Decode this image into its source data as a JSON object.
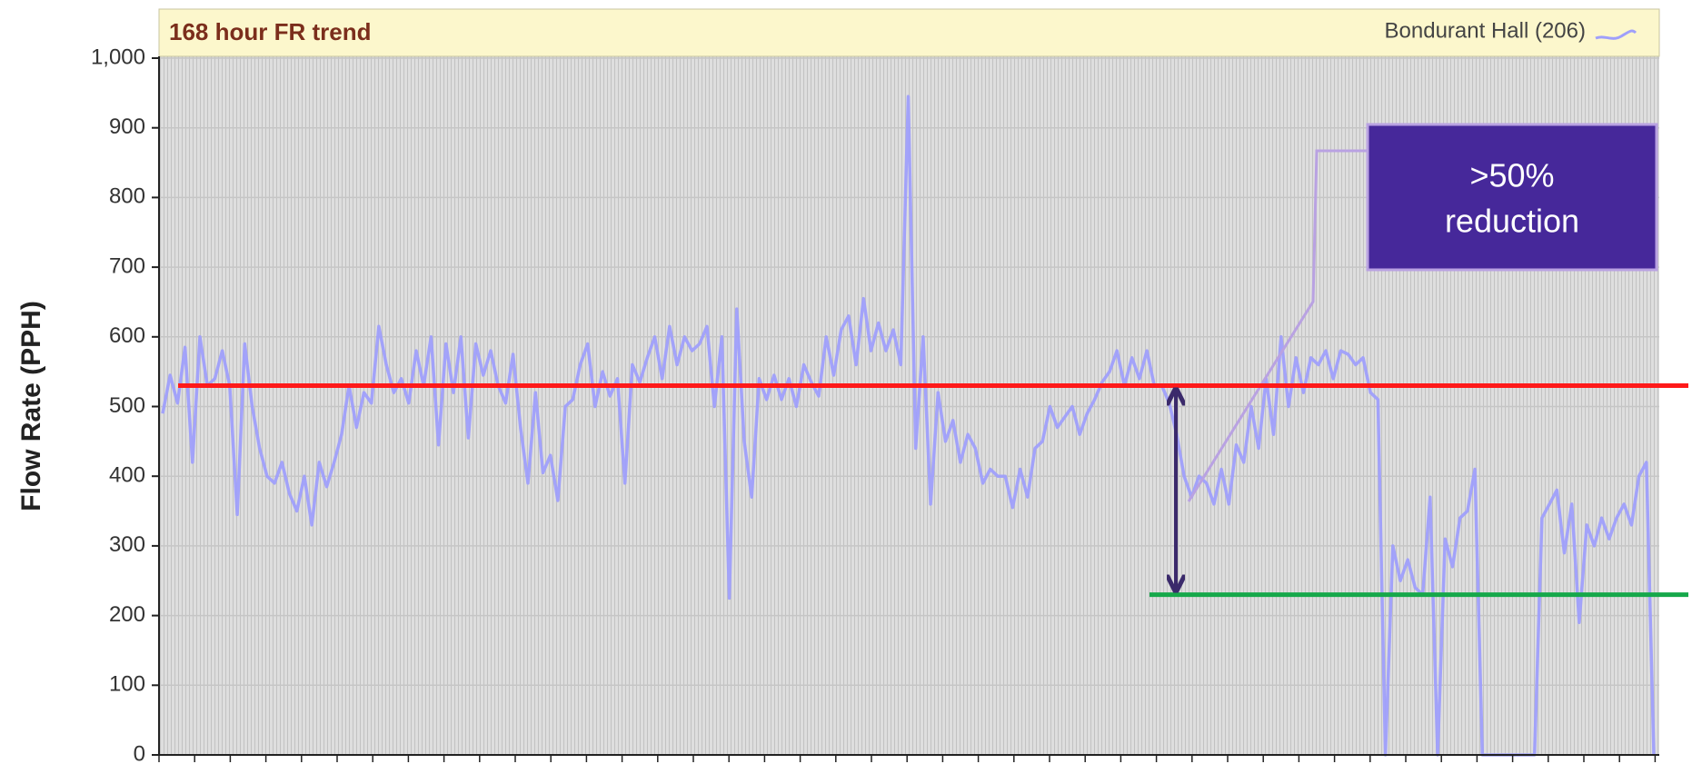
{
  "chart_data": {
    "type": "line",
    "title": "168 hour FR trend",
    "y_label": "Flow Rate (PPH)",
    "series": [
      {
        "name": "Bondurant Hall (206)",
        "color": "#9f9ffb",
        "values": [
          490,
          545,
          505,
          585,
          420,
          600,
          530,
          540,
          580,
          530,
          345,
          590,
          500,
          440,
          400,
          390,
          420,
          375,
          350,
          400,
          330,
          420,
          385,
          420,
          460,
          530,
          470,
          520,
          505,
          615,
          560,
          520,
          540,
          505,
          580,
          530,
          600,
          445,
          590,
          520,
          600,
          455,
          590,
          545,
          580,
          530,
          505,
          575,
          470,
          390,
          520,
          405,
          430,
          365,
          500,
          510,
          560,
          590,
          500,
          550,
          515,
          540,
          390,
          560,
          535,
          570,
          600,
          540,
          615,
          560,
          600,
          580,
          590,
          615,
          500,
          600,
          225,
          640,
          450,
          370,
          540,
          510,
          545,
          510,
          540,
          500,
          560,
          535,
          515,
          600,
          545,
          610,
          630,
          560,
          655,
          580,
          620,
          580,
          610,
          560,
          945,
          440,
          600,
          360,
          520,
          450,
          480,
          420,
          460,
          440,
          390,
          410,
          400,
          400,
          355,
          410,
          370,
          440,
          450,
          500,
          470,
          485,
          500,
          460,
          490,
          510,
          535,
          550,
          580,
          530,
          570,
          540,
          580,
          530,
          530,
          505,
          460,
          400,
          370,
          400,
          390,
          360,
          410,
          360,
          445,
          420,
          500,
          440,
          540,
          460,
          600,
          500,
          570,
          520,
          570,
          560,
          580,
          540,
          580,
          575,
          560,
          570,
          520,
          510,
          0,
          300,
          250,
          280,
          240,
          230,
          370,
          0,
          310,
          270,
          340,
          350,
          410,
          0,
          0,
          0,
          0,
          0,
          0,
          0,
          0,
          340,
          360,
          380,
          290,
          360,
          190,
          330,
          300,
          340,
          310,
          340,
          360,
          330,
          400,
          420,
          0
        ]
      }
    ],
    "ylim": [
      0,
      1000
    ],
    "yticks": [
      0,
      100,
      200,
      300,
      400,
      500,
      600,
      700,
      800,
      900,
      {
        "value": 1000,
        "label": "1,000"
      }
    ],
    "grid": true,
    "legend": "top-right",
    "reference_lines": [
      {
        "value": 530,
        "color": "#ff1a1a"
      },
      {
        "value": 230,
        "color": "#16a84a"
      }
    ],
    "annotation": [
      ">50%",
      "reduction"
    ]
  }
}
